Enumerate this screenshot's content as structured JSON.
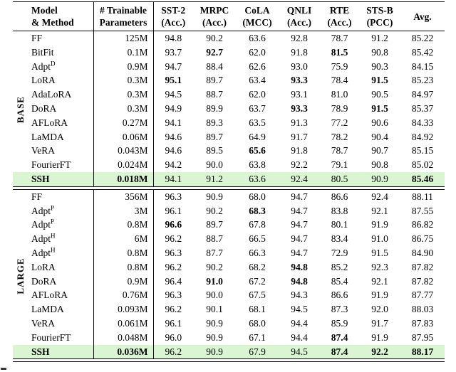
{
  "table": {
    "highlight_color": "#d9f5d2",
    "columns": [
      {
        "id": "section",
        "label1": "",
        "label2": ""
      },
      {
        "id": "method",
        "label1": "Model",
        "label2": "& Method"
      },
      {
        "id": "params",
        "label1": "# Trainable",
        "label2": "Parameters"
      },
      {
        "id": "sst2",
        "label1": "SST-2",
        "label2": "(Acc.)"
      },
      {
        "id": "mrpc",
        "label1": "MRPC",
        "label2": "(Acc.)"
      },
      {
        "id": "cola",
        "label1": "CoLA",
        "label2": "(MCC)"
      },
      {
        "id": "qnli",
        "label1": "QNLI",
        "label2": "(Acc.)"
      },
      {
        "id": "rte",
        "label1": "RTE",
        "label2": "(Acc.)"
      },
      {
        "id": "stsb",
        "label1": "STS-B",
        "label2": "(PCC)"
      },
      {
        "id": "avg",
        "label1": "Avg.",
        "label2": ""
      }
    ],
    "sections": [
      {
        "label": "BASE",
        "rows": [
          {
            "method": "FF",
            "sup": "",
            "params": "125M",
            "values": [
              "94.8",
              "90.2",
              "63.6",
              "92.8",
              "78.7",
              "91.2",
              "85.22"
            ],
            "bold_values": [],
            "highlight": false,
            "emphasis": false
          },
          {
            "method": "BitFit",
            "sup": "",
            "params": "0.1M",
            "values": [
              "93.7",
              "92.7",
              "62.0",
              "91.8",
              "81.5",
              "90.8",
              "85.42"
            ],
            "bold_values": [
              1,
              4
            ],
            "highlight": false,
            "emphasis": false
          },
          {
            "method": "Adpt",
            "sup": "D",
            "params": "0.9M",
            "values": [
              "94.7",
              "88.4",
              "62.6",
              "93.0",
              "75.9",
              "90.3",
              "84.15"
            ],
            "bold_values": [],
            "highlight": false,
            "emphasis": false
          },
          {
            "method": "LoRA",
            "sup": "",
            "params": "0.3M",
            "values": [
              "95.1",
              "89.7",
              "63.4",
              "93.3",
              "78.4",
              "91.5",
              "85.23"
            ],
            "bold_values": [
              0,
              3,
              5
            ],
            "highlight": false,
            "emphasis": false
          },
          {
            "method": "AdaLoRA",
            "sup": "",
            "params": "0.3M",
            "values": [
              "94.5",
              "88.7",
              "62.0",
              "93.1",
              "81.0",
              "90.5",
              "84.97"
            ],
            "bold_values": [],
            "highlight": false,
            "emphasis": false
          },
          {
            "method": "DoRA",
            "sup": "",
            "params": "0.3M",
            "values": [
              "94.9",
              "89.9",
              "63.7",
              "93.3",
              "78.9",
              "91.5",
              "85.37"
            ],
            "bold_values": [
              3,
              5
            ],
            "highlight": false,
            "emphasis": false
          },
          {
            "method": "AFLoRA",
            "sup": "",
            "params": "0.27M",
            "values": [
              "94.1",
              "89.3",
              "63.5",
              "91.3",
              "77.2",
              "90.6",
              "84.33"
            ],
            "bold_values": [],
            "highlight": false,
            "emphasis": false
          },
          {
            "method": "LaMDA",
            "sup": "",
            "params": "0.06M",
            "values": [
              "94.6",
              "89.7",
              "64.9",
              "91.7",
              "78.2",
              "90.4",
              "84.92"
            ],
            "bold_values": [],
            "highlight": false,
            "emphasis": false
          },
          {
            "method": "VeRA",
            "sup": "",
            "params": "0.043M",
            "values": [
              "94.6",
              "89.5",
              "65.6",
              "91.8",
              "78.7",
              "90.7",
              "85.15"
            ],
            "bold_values": [
              2
            ],
            "highlight": false,
            "emphasis": false
          },
          {
            "method": "FourierFT",
            "sup": "",
            "params": "0.024M",
            "values": [
              "94.2",
              "90.0",
              "63.8",
              "92.2",
              "79.1",
              "90.8",
              "85.02"
            ],
            "bold_values": [],
            "highlight": false,
            "emphasis": false
          },
          {
            "method": "SSH",
            "sup": "",
            "params": "0.018M",
            "values": [
              "94.1",
              "91.2",
              "63.6",
              "92.4",
              "80.5",
              "90.9",
              "85.46"
            ],
            "bold_values": [
              6
            ],
            "highlight": true,
            "emphasis": true
          }
        ]
      },
      {
        "label": "LARGE",
        "rows": [
          {
            "method": "FF",
            "sup": "",
            "params": "356M",
            "values": [
              "96.3",
              "90.9",
              "68.0",
              "94.7",
              "86.6",
              "92.4",
              "88.11"
            ],
            "bold_values": [],
            "highlight": false,
            "emphasis": false
          },
          {
            "method": "Adpt",
            "sup": "P",
            "params": "3M",
            "values": [
              "96.1",
              "90.2",
              "68.3",
              "94.7",
              "83.8",
              "92.1",
              "87.55"
            ],
            "bold_values": [
              2
            ],
            "highlight": false,
            "emphasis": false
          },
          {
            "method": "Adpt",
            "sup": "P",
            "params": "0.8M",
            "values": [
              "96.6",
              "89.7",
              "67.8",
              "94.7",
              "80.1",
              "91.9",
              "86.82"
            ],
            "bold_values": [
              0
            ],
            "highlight": false,
            "emphasis": false
          },
          {
            "method": "Adpt",
            "sup": "H",
            "params": "6M",
            "values": [
              "96.2",
              "88.7",
              "66.5",
              "94.7",
              "83.4",
              "91.0",
              "86.75"
            ],
            "bold_values": [],
            "highlight": false,
            "emphasis": false
          },
          {
            "method": "Adpt",
            "sup": "H",
            "params": "0.8M",
            "values": [
              "96.3",
              "87.7",
              "66.3",
              "94.7",
              "72.9",
              "91.5",
              "84.90"
            ],
            "bold_values": [],
            "highlight": false,
            "emphasis": false
          },
          {
            "method": "LoRA",
            "sup": "",
            "params": "0.8M",
            "values": [
              "96.2",
              "90.2",
              "68.2",
              "94.8",
              "85.2",
              "92.3",
              "87.82"
            ],
            "bold_values": [
              3
            ],
            "highlight": false,
            "emphasis": false
          },
          {
            "method": "DoRA",
            "sup": "",
            "params": "0.9M",
            "values": [
              "96.4",
              "91.0",
              "67.2",
              "94.8",
              "85.4",
              "92.1",
              "87.82"
            ],
            "bold_values": [
              1,
              3
            ],
            "highlight": false,
            "emphasis": false
          },
          {
            "method": "AFLoRA",
            "sup": "",
            "params": "0.76M",
            "values": [
              "96.3",
              "90.0",
              "67.5",
              "94.3",
              "86.6",
              "91.9",
              "87.77"
            ],
            "bold_values": [],
            "highlight": false,
            "emphasis": false
          },
          {
            "method": "LaMDA",
            "sup": "",
            "params": "0.093M",
            "values": [
              "96.2",
              "90.1",
              "68.1",
              "94.5",
              "87.3",
              "92.0",
              "88.03"
            ],
            "bold_values": [],
            "highlight": false,
            "emphasis": false
          },
          {
            "method": "VeRA",
            "sup": "",
            "params": "0.061M",
            "values": [
              "96.1",
              "90.9",
              "68.0",
              "94.4",
              "85.9",
              "91.7",
              "87.83"
            ],
            "bold_values": [],
            "highlight": false,
            "emphasis": false
          },
          {
            "method": "FourierFT",
            "sup": "",
            "params": "0.048M",
            "values": [
              "96.0",
              "90.9",
              "67.1",
              "94.4",
              "87.4",
              "91.9",
              "87.95"
            ],
            "bold_values": [
              4
            ],
            "highlight": false,
            "emphasis": false
          },
          {
            "method": "SSH",
            "sup": "",
            "params": "0.036M",
            "values": [
              "96.2",
              "90.9",
              "67.9",
              "94.5",
              "87.4",
              "92.2",
              "88.17"
            ],
            "bold_values": [
              4,
              5,
              6
            ],
            "highlight": true,
            "emphasis": true
          }
        ]
      }
    ]
  }
}
